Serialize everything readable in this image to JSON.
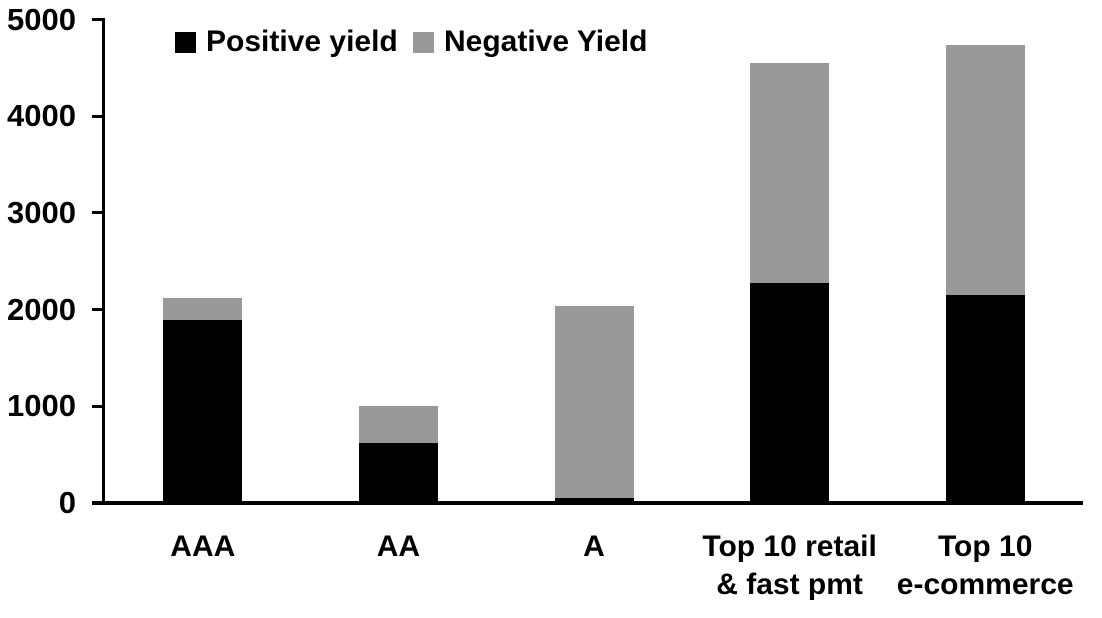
{
  "chart_data": {
    "type": "bar",
    "stacked": true,
    "title": "",
    "xlabel": "",
    "ylabel": "",
    "categories": [
      "AAA",
      "AA",
      "A",
      "Top 10 retail\n& fast pmt",
      "Top 10\ne-commerce"
    ],
    "series": [
      {
        "name": "Positive yield",
        "color": "#000000",
        "values": [
          1890,
          620,
          50,
          2280,
          2150
        ]
      },
      {
        "name": "Negative Yield",
        "color": "#999999",
        "values": [
          230,
          380,
          1990,
          2270,
          2590
        ]
      }
    ],
    "totals": [
      2120,
      1000,
      2040,
      4550,
      4740
    ],
    "ylim": [
      0,
      5000
    ],
    "yticks": [
      0,
      1000,
      2000,
      3000,
      4000,
      5000
    ],
    "grid": false,
    "legend_position": "top-inside",
    "colors": {
      "axis": "#000000",
      "background": "#ffffff",
      "positive": "#000000",
      "negative": "#999999"
    }
  }
}
